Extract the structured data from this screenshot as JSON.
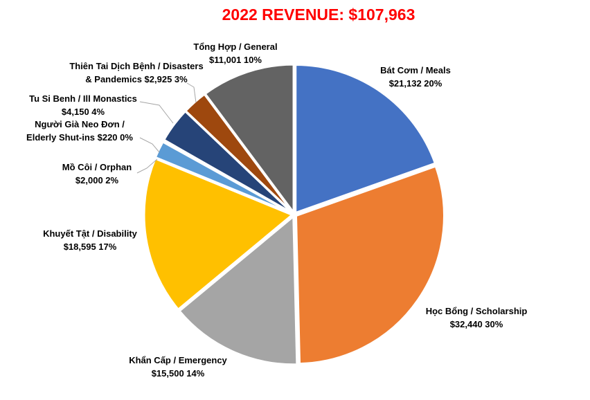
{
  "chart_data": {
    "type": "pie",
    "title": "2022 REVENUE: $107,963",
    "slices": [
      {
        "label_lines": [
          "Bát Cơm / Meals"
        ],
        "amount_text": "$21,132",
        "percent_text": "20%",
        "value": 21132,
        "color": "#4472c4"
      },
      {
        "label_lines": [
          "Học Bổng / Scholarship"
        ],
        "amount_text": "$32,440",
        "percent_text": "30%",
        "value": 32440,
        "color": "#ed7d31"
      },
      {
        "label_lines": [
          "Khẩn Cấp / Emergency"
        ],
        "amount_text": "$15,500",
        "percent_text": "14%",
        "value": 15500,
        "color": "#a5a5a5"
      },
      {
        "label_lines": [
          "Khuyết Tật / Disability"
        ],
        "amount_text": "$18,595",
        "percent_text": "17%",
        "value": 18595,
        "color": "#ffc000"
      },
      {
        "label_lines": [
          "Mồ Côi / Orphan"
        ],
        "amount_text": "$2,000",
        "percent_text": "2%",
        "value": 2000,
        "color": "#5b9bd5"
      },
      {
        "label_lines": [
          "Người Già Neo Đơn /",
          "Elderly Shut-ins"
        ],
        "amount_text": "$220",
        "percent_text": "0%",
        "value": 220,
        "color": "#70ad47"
      },
      {
        "label_lines": [
          "Tu Si Benh / Ill Monastics"
        ],
        "amount_text": "$4,150",
        "percent_text": "4%",
        "value": 4150,
        "color": "#264478"
      },
      {
        "label_lines": [
          "Thiên Tai Dịch Bệnh / Disasters",
          "& Pandemics"
        ],
        "amount_text": "$2,925",
        "percent_text": "3%",
        "value": 2925,
        "color": "#9e480e"
      },
      {
        "label_lines": [
          "Tổng Hợp / General"
        ],
        "amount_text": "$11,001",
        "percent_text": "10%",
        "value": 11001,
        "color": "#636363"
      }
    ]
  }
}
